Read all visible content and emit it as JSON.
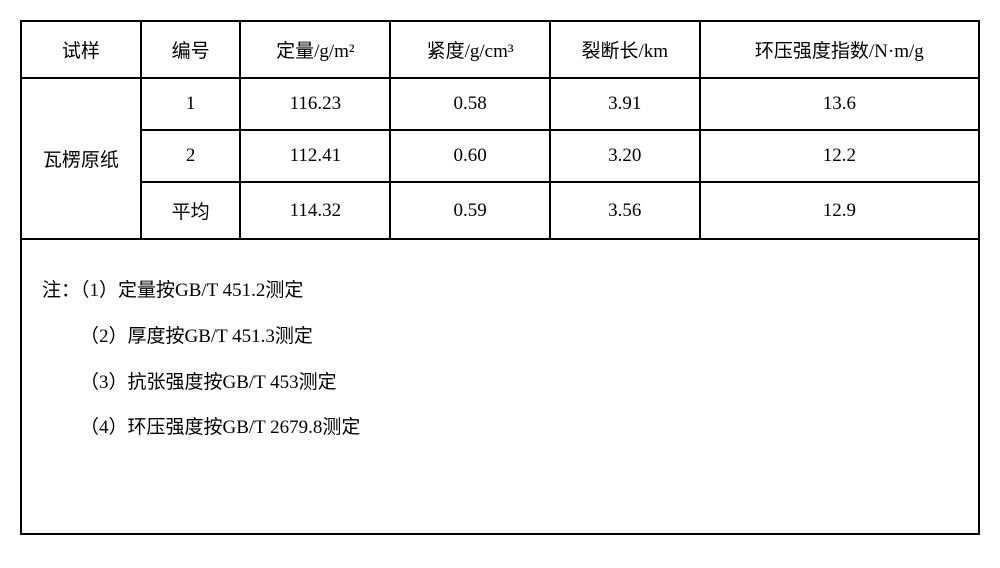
{
  "table": {
    "headers": {
      "sample": "试样",
      "number": "编号",
      "weight": "定量/g/m²",
      "density": "紧度/g/cm³",
      "breaklen": "裂断长/km",
      "strength": "环压强度指数/N·m/g"
    },
    "sample_name": "瓦楞原纸",
    "rows": [
      {
        "number": "1",
        "weight": "116.23",
        "density": "0.58",
        "breaklen": "3.91",
        "strength": "13.6"
      },
      {
        "number": "2",
        "weight": "112.41",
        "density": "0.60",
        "breaklen": "3.20",
        "strength": "12.2"
      },
      {
        "number": "平均",
        "weight": "114.32",
        "density": "0.59",
        "breaklen": "3.56",
        "strength": "12.9"
      }
    ],
    "notes": {
      "line1": "注：（1）定量按GB/T 451.2测定",
      "line2": "（2）厚度按GB/T 451.3测定",
      "line3": "（3）抗张强度按GB/T 453测定",
      "line4": "（4）环压强度按GB/T 2679.8测定"
    },
    "colors": {
      "border": "#000000",
      "background": "#ffffff",
      "text": "#000000"
    },
    "font_size": 19,
    "line_height": 2.2
  }
}
